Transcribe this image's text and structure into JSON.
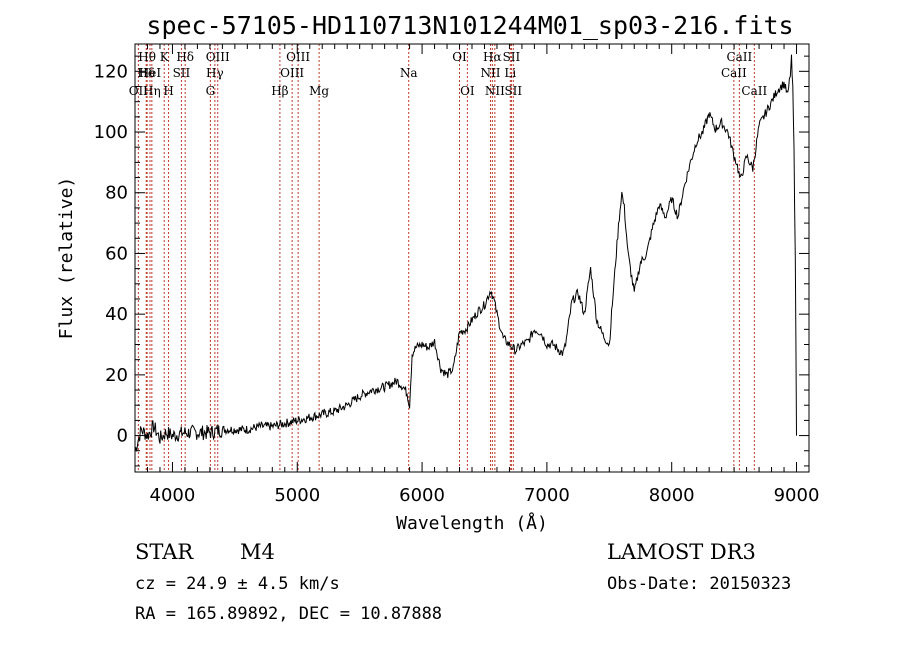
{
  "chart_data": {
    "type": "line",
    "title": "spec-57105-HD110713N101244M01_sp03-216.fits",
    "xlabel": "Wavelength (Å)",
    "ylabel": "Flux (relative)",
    "xlim": [
      3700,
      9100
    ],
    "ylim": [
      -12,
      129
    ],
    "xticks": [
      4000,
      5000,
      6000,
      7000,
      8000,
      9000
    ],
    "yticks": [
      0,
      20,
      40,
      60,
      80,
      100,
      120
    ],
    "series": [
      {
        "name": "spectrum",
        "x": [
          3700,
          3750,
          3800,
          3850,
          3900,
          3950,
          4000,
          4100,
          4200,
          4300,
          4400,
          4500,
          4600,
          4700,
          4800,
          4900,
          5000,
          5100,
          5200,
          5300,
          5400,
          5500,
          5600,
          5700,
          5800,
          5850,
          5880,
          5900,
          5920,
          5950,
          6000,
          6050,
          6100,
          6150,
          6200,
          6250,
          6300,
          6350,
          6400,
          6450,
          6500,
          6550,
          6580,
          6600,
          6650,
          6700,
          6750,
          6800,
          6850,
          6900,
          6950,
          7000,
          7050,
          7100,
          7130,
          7150,
          7200,
          7250,
          7300,
          7350,
          7400,
          7450,
          7500,
          7550,
          7580,
          7600,
          7620,
          7650,
          7680,
          7700,
          7750,
          7800,
          7850,
          7900,
          7950,
          8000,
          8050,
          8100,
          8150,
          8200,
          8250,
          8300,
          8350,
          8400,
          8450,
          8500,
          8520,
          8550,
          8600,
          8650,
          8700,
          8750,
          8800,
          8850,
          8900,
          8930,
          8950,
          8960,
          8970,
          8980,
          8990,
          9000
        ],
        "y": [
          -5,
          2,
          0,
          3,
          -1,
          1,
          0,
          1,
          1,
          1,
          2,
          2,
          2,
          3,
          3,
          4,
          5,
          6,
          7,
          8,
          10,
          13,
          15,
          16,
          18,
          16,
          14,
          10,
          27,
          29,
          30,
          29,
          31,
          22,
          20,
          22,
          34,
          35,
          38,
          41,
          43,
          48,
          44,
          40,
          32,
          30,
          28,
          30,
          31,
          35,
          34,
          30,
          30,
          28,
          27,
          30,
          44,
          47,
          40,
          55,
          38,
          33,
          30,
          57,
          72,
          80,
          75,
          60,
          52,
          47,
          57,
          60,
          69,
          76,
          72,
          78,
          72,
          82,
          90,
          97,
          100,
          106,
          101,
          103,
          100,
          92,
          90,
          84,
          92,
          88,
          102,
          106,
          110,
          114,
          116,
          112,
          119,
          124,
          114,
          94,
          60,
          0
        ]
      }
    ],
    "lines": [
      {
        "label": "Hδ",
        "x": 3790,
        "row": 1
      },
      {
        "label": "OII",
        "x": 3727,
        "row": 2
      },
      {
        "label": "Hθ",
        "x": 3797,
        "row": 0
      },
      {
        "label": "HeI",
        "x": 3820,
        "row": 1
      },
      {
        "label": "Hη",
        "x": 3835,
        "row": 2
      },
      {
        "label": "K",
        "x": 3934,
        "row": 0
      },
      {
        "label": "H",
        "x": 3969,
        "row": 2
      },
      {
        "label": "SII",
        "x": 4072,
        "row": 1
      },
      {
        "label": "Hδ",
        "x": 4102,
        "row": 0
      },
      {
        "label": "OIII",
        "x": 4363,
        "row": 0
      },
      {
        "label": "Hγ",
        "x": 4340,
        "row": 1
      },
      {
        "label": "G",
        "x": 4304,
        "row": 2
      },
      {
        "label": "Hβ",
        "x": 4861,
        "row": 2
      },
      {
        "label": "OIII",
        "x": 5007,
        "row": 0
      },
      {
        "label": "OIII",
        "x": 4959,
        "row": 1
      },
      {
        "label": "Mg",
        "x": 5175,
        "row": 2
      },
      {
        "label": "Na",
        "x": 5893,
        "row": 1
      },
      {
        "label": "OI",
        "x": 6300,
        "row": 0
      },
      {
        "label": "OI",
        "x": 6363,
        "row": 2
      },
      {
        "label": "Hα",
        "x": 6563,
        "row": 0
      },
      {
        "label": "NII",
        "x": 6548,
        "row": 1
      },
      {
        "label": "NII",
        "x": 6583,
        "row": 2
      },
      {
        "label": "SII",
        "x": 6716,
        "row": 0
      },
      {
        "label": "Li",
        "x": 6707,
        "row": 1
      },
      {
        "label": "SII",
        "x": 6731,
        "row": 2
      },
      {
        "label": "CaII",
        "x": 8498,
        "row": 1
      },
      {
        "label": "CaII",
        "x": 8542,
        "row": 0
      },
      {
        "label": "CaII",
        "x": 8662,
        "row": 2
      }
    ]
  },
  "info": {
    "class_label": "STAR",
    "subclass": "M4",
    "survey": "LAMOST DR3",
    "cz": "cz = 24.9 ± 4.5 km/s",
    "obs_date": "Obs-Date: 20150323",
    "radec": "RA = 165.89892, DEC =  10.87888"
  }
}
